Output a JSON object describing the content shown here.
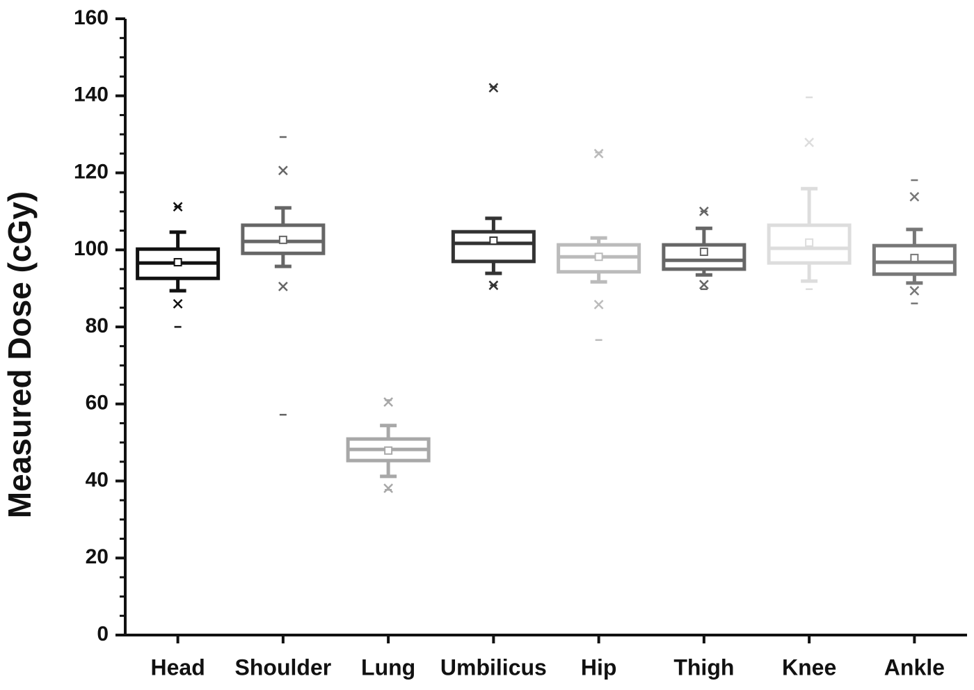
{
  "chart_data": {
    "type": "box",
    "y_label": "Measured Dose (cGy)",
    "categories": [
      "Head",
      "Shoulder",
      "Lung",
      "Umbilicus",
      "Hip",
      "Thigh",
      "Knee",
      "Ankle"
    ],
    "ylim": [
      0,
      160
    ],
    "yticks": [
      0,
      20,
      40,
      60,
      80,
      100,
      120,
      140,
      160
    ],
    "yticks_minor": [
      5,
      10,
      15,
      25,
      30,
      35,
      45,
      50,
      55,
      65,
      70,
      75,
      85,
      90,
      95,
      105,
      110,
      115,
      125,
      130,
      135,
      145,
      150,
      155
    ],
    "boxes": [
      {
        "color": "#111111",
        "q1": 92.6,
        "median": 96.6,
        "q3": 100.2,
        "mean": 96.8,
        "whisker_low": 89.4,
        "whisker_high": 104.6,
        "outliers": [
          111.2,
          86
        ],
        "min": 80,
        "max": 111.2
      },
      {
        "color": "#666666",
        "q1": 99.1,
        "median": 102.2,
        "q3": 106.4,
        "mean": 102.6,
        "whisker_low": 95.7,
        "whisker_high": 110.9,
        "outliers": [
          120.6,
          90.5
        ],
        "min": 57.2,
        "max": 129.3
      },
      {
        "color": "#a8a8a8",
        "q1": 45.3,
        "median": 48.2,
        "q3": 50.9,
        "mean": 47.9,
        "whisker_low": 41.2,
        "whisker_high": 54.4,
        "outliers": [
          60.5,
          38.1
        ],
        "min": 37.7,
        "max": 61
      },
      {
        "color": "#333333",
        "q1": 97,
        "median": 101.7,
        "q3": 104.7,
        "mean": 102.4,
        "whisker_low": 93.9,
        "whisker_high": 108.2,
        "outliers": [
          142.1,
          90.8
        ],
        "min": 90.8,
        "max": 142.3
      },
      {
        "color": "#bbbbbb",
        "q1": 94.3,
        "median": 98.2,
        "q3": 101.3,
        "mean": 98.2,
        "whisker_low": 91.7,
        "whisker_high": 103.1,
        "outliers": [
          125,
          85.8
        ],
        "min": 76.6,
        "max": 125.3
      },
      {
        "color": "#666666",
        "q1": 95,
        "median": 97.3,
        "q3": 101.3,
        "mean": 99.5,
        "whisker_low": 93.5,
        "whisker_high": 105.6,
        "outliers": [
          110,
          91
        ],
        "min": 89.8,
        "max": 110
      },
      {
        "color": "#dddddd",
        "q1": 96.6,
        "median": 100.4,
        "q3": 106.4,
        "mean": 101.9,
        "whisker_low": 91.9,
        "whisker_high": 115.9,
        "outliers": [
          127.9
        ],
        "min": 89.8,
        "max": 139.6
      },
      {
        "color": "#777777",
        "q1": 93.7,
        "median": 96.8,
        "q3": 101.1,
        "mean": 97.9,
        "whisker_low": 91.4,
        "whisker_high": 105.3,
        "outliers": [
          113.8,
          89.4
        ],
        "min": 86.1,
        "max": 118.1
      }
    ]
  }
}
